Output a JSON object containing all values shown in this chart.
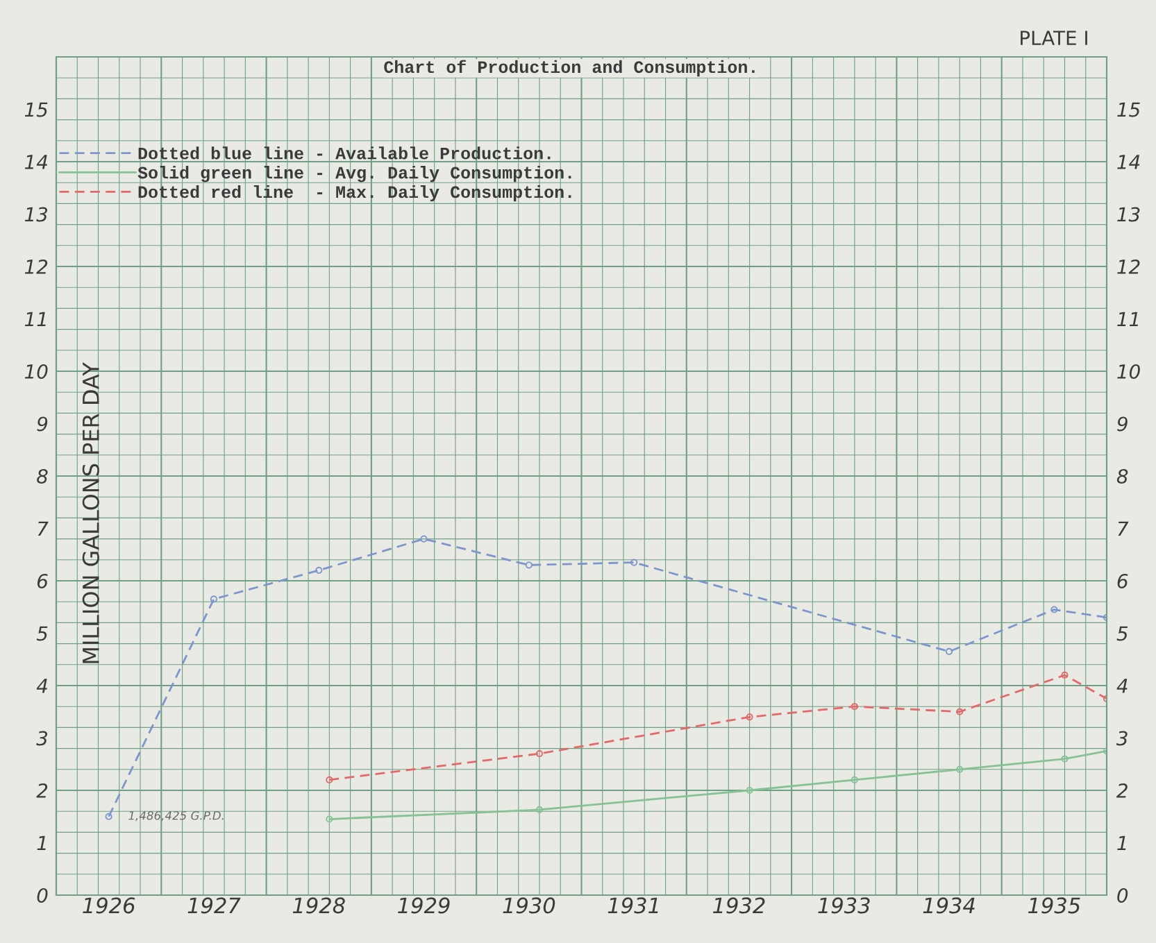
{
  "chart_data": {
    "type": "line",
    "title": "Chart of Production and Consumption.",
    "ylabel": "MILLION GALLONS PER DAY",
    "annotations": [
      "PLATE I",
      {
        "text": "1,486,425 G.P.D.",
        "x": 1926,
        "y": 1.5
      }
    ],
    "xlim": [
      1925.5,
      1935.5
    ],
    "xticks": [
      {
        "value": 1925.7,
        "label": null
      },
      {
        "value": 1925.9,
        "label": null
      },
      1926,
      {
        "value": 1926.1,
        "label": null
      },
      {
        "value": 1926.3,
        "label": null
      },
      {
        "value": 1926.5,
        "label": null
      },
      {
        "value": 1926.7,
        "label": null
      },
      {
        "value": 1926.9,
        "label": null
      },
      1927,
      {
        "value": 1927.1,
        "label": null
      },
      {
        "value": 1927.3,
        "label": null
      },
      {
        "value": 1927.5,
        "label": null
      },
      {
        "value": 1927.7,
        "label": null
      },
      {
        "value": 1927.9,
        "label": null
      },
      1928,
      {
        "value": 1928.1,
        "label": null
      },
      {
        "value": 1928.3,
        "label": null
      },
      {
        "value": 1928.5,
        "label": null
      },
      {
        "value": 1928.7,
        "label": null
      },
      {
        "value": 1928.9,
        "label": null
      },
      1929,
      {
        "value": 1929.1,
        "label": null
      },
      {
        "value": 1929.3,
        "label": null
      },
      {
        "value": 1929.5,
        "label": null
      },
      {
        "value": 1929.7,
        "label": null
      },
      {
        "value": 1929.9,
        "label": null
      },
      1930,
      {
        "value": 1930.1,
        "label": null
      },
      {
        "value": 1930.3,
        "label": null
      },
      {
        "value": 1930.5,
        "label": null
      },
      {
        "value": 1930.7,
        "label": null
      },
      {
        "value": 1930.9,
        "label": null
      },
      1931,
      {
        "value": 1931.1,
        "label": null
      },
      {
        "value": 1931.3,
        "label": null
      },
      {
        "value": 1931.5,
        "label": null
      },
      {
        "value": 1931.7,
        "label": null
      },
      {
        "value": 1931.9,
        "label": null
      },
      1932,
      {
        "value": 1932.1,
        "label": null
      },
      {
        "value": 1932.3,
        "label": null
      },
      {
        "value": 1932.5,
        "label": null
      },
      {
        "value": 1932.7,
        "label": null
      },
      {
        "value": 1932.9,
        "label": null
      },
      1933,
      {
        "value": 1933.1,
        "label": null
      },
      {
        "value": 1933.3,
        "label": null
      },
      {
        "value": 1933.5,
        "label": null
      },
      {
        "value": 1933.7,
        "label": null
      },
      {
        "value": 1933.9,
        "label": null
      },
      1934,
      {
        "value": 1934.1,
        "label": null
      },
      {
        "value": 1934.3,
        "label": null
      },
      {
        "value": 1934.5,
        "label": null
      },
      {
        "value": 1934.7,
        "label": null
      },
      {
        "value": 1934.9,
        "label": null
      },
      1935,
      {
        "value": 1935.1,
        "label": null
      },
      {
        "value": 1935.3,
        "label": null
      }
    ],
    "ylim": [
      0,
      16
    ],
    "yticks": [
      0,
      {
        "value": 0.4,
        "label": null
      },
      {
        "value": 0.8,
        "label": null
      },
      1,
      {
        "value": 1.2,
        "label": null
      },
      {
        "value": 1.6,
        "label": null
      },
      2,
      {
        "value": 2.4,
        "label": null
      },
      {
        "value": 2.8,
        "label": null
      },
      3,
      {
        "value": 3.2,
        "label": null
      },
      {
        "value": 3.6,
        "label": null
      },
      4,
      {
        "value": 4.4,
        "label": null
      },
      {
        "value": 4.8,
        "label": null
      },
      5,
      {
        "value": 5.2,
        "label": null
      },
      {
        "value": 5.6,
        "label": null
      },
      6,
      {
        "value": 6.4,
        "label": null
      },
      {
        "value": 6.8,
        "label": null
      },
      7,
      {
        "value": 7.2,
        "label": null
      },
      {
        "value": 7.6,
        "label": null
      },
      8,
      {
        "value": 8.4,
        "label": null
      },
      {
        "value": 8.8,
        "label": null
      },
      9,
      {
        "value": 9.2,
        "label": null
      },
      {
        "value": 9.6,
        "label": null
      },
      10,
      {
        "value": 10.4,
        "label": null
      },
      {
        "value": 10.8,
        "label": null
      },
      11,
      {
        "value": 11.2,
        "label": null
      },
      {
        "value": 11.6,
        "label": null
      },
      12,
      {
        "value": 12.4,
        "label": null
      },
      {
        "value": 12.8,
        "label": null
      },
      13,
      {
        "value": 13.2,
        "label": null
      },
      {
        "value": 13.6,
        "label": null
      },
      14,
      {
        "value": 14.4,
        "label": null
      },
      {
        "value": 14.8,
        "label": null
      },
      15,
      {
        "value": 15.2,
        "label": null
      },
      {
        "value": 15.6,
        "label": null
      }
    ],
    "y2lim": [
      0,
      16
    ],
    "y2ticks": [
      0,
      1,
      2,
      3,
      4,
      5,
      6,
      7,
      8,
      9,
      10,
      11,
      12,
      13,
      14,
      15
    ],
    "grid": true,
    "legend": "top left",
    "marker": "circle",
    "series": [
      {
        "name": "Dotted blue line - Available Production.",
        "color": "#7d95cc",
        "line_style": "dashed",
        "x": [
          1926,
          1927,
          1928,
          1929,
          1930,
          1931,
          1934,
          1935,
          1935.5
        ],
        "values": [
          1.5,
          5.65,
          6.2,
          6.8,
          6.3,
          6.35,
          4.65,
          5.45,
          5.3
        ]
      },
      {
        "name": "Solid green line - Avg. Daily Consumption.",
        "color": "#86c295",
        "line_style": "solid",
        "x": [
          1928.1,
          1930.1,
          1932.1,
          1933.1,
          1934.1,
          1935.1,
          1935.5
        ],
        "values": [
          1.45,
          1.63,
          2.0,
          2.2,
          2.4,
          2.6,
          2.75
        ]
      },
      {
        "name": "Dotted red line  - Max. Daily Consumption.",
        "color": "#e3686a",
        "line_style": "dashed",
        "x": [
          1928.1,
          1930.1,
          1932.1,
          1933.1,
          1934.1,
          1935.1,
          1935.5
        ],
        "values": [
          2.2,
          2.7,
          3.4,
          3.6,
          3.5,
          4.2,
          3.75
        ]
      }
    ]
  }
}
